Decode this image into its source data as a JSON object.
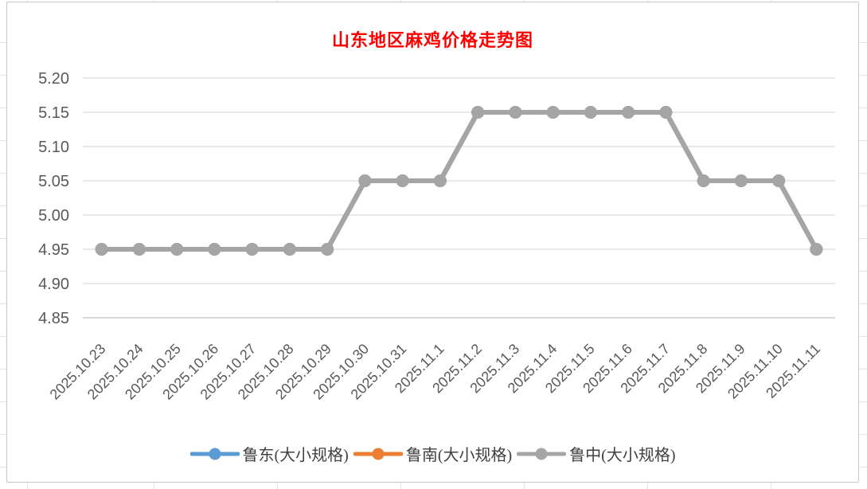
{
  "chart_data": {
    "type": "line",
    "title": "山东地区麻鸡价格走势图",
    "categories": [
      "2025.10.23",
      "2025.10.24",
      "2025.10.25",
      "2025.10.26",
      "2025.10.27",
      "2025.10.28",
      "2025.10.29",
      "2025.10.30",
      "2025.10.31",
      "2025.11.1",
      "2025.11.2",
      "2025.11.3",
      "2025.11.4",
      "2025.11.5",
      "2025.11.6",
      "2025.11.7",
      "2025.11.8",
      "2025.11.9",
      "2025.11.10",
      "2025.11.11"
    ],
    "series": [
      {
        "name": "鲁东(大小规格)",
        "color": "#5B9BD5",
        "values": [
          4.95,
          4.95,
          4.95,
          4.95,
          4.95,
          4.95,
          4.95,
          5.05,
          5.05,
          5.05,
          5.15,
          5.15,
          5.15,
          5.15,
          5.15,
          5.15,
          5.05,
          5.05,
          5.05,
          4.95
        ]
      },
      {
        "name": "鲁南(大小规格)",
        "color": "#ED7D31",
        "values": [
          4.95,
          4.95,
          4.95,
          4.95,
          4.95,
          4.95,
          4.95,
          5.05,
          5.05,
          5.05,
          5.15,
          5.15,
          5.15,
          5.15,
          5.15,
          5.15,
          5.05,
          5.05,
          5.05,
          4.95
        ]
      },
      {
        "name": "鲁中(大小规格)",
        "color": "#A5A5A5",
        "values": [
          4.95,
          4.95,
          4.95,
          4.95,
          4.95,
          4.95,
          4.95,
          5.05,
          5.05,
          5.05,
          5.15,
          5.15,
          5.15,
          5.15,
          5.15,
          5.15,
          5.05,
          5.05,
          5.05,
          4.95
        ]
      }
    ],
    "ylim": [
      4.85,
      5.2
    ],
    "ytick_step": 0.05,
    "ytick_labels": [
      "4.85",
      "4.90",
      "4.95",
      "5.00",
      "5.05",
      "5.10",
      "5.15",
      "5.20"
    ],
    "grid": true,
    "legend_position": "bottom",
    "xlabel": "",
    "ylabel": ""
  },
  "colors": {
    "title": "#FF0000",
    "gridline": "#D9D9D9",
    "axis_line": "#BFBFBF",
    "tick_text": "#595959",
    "legend_text": "#404040"
  }
}
